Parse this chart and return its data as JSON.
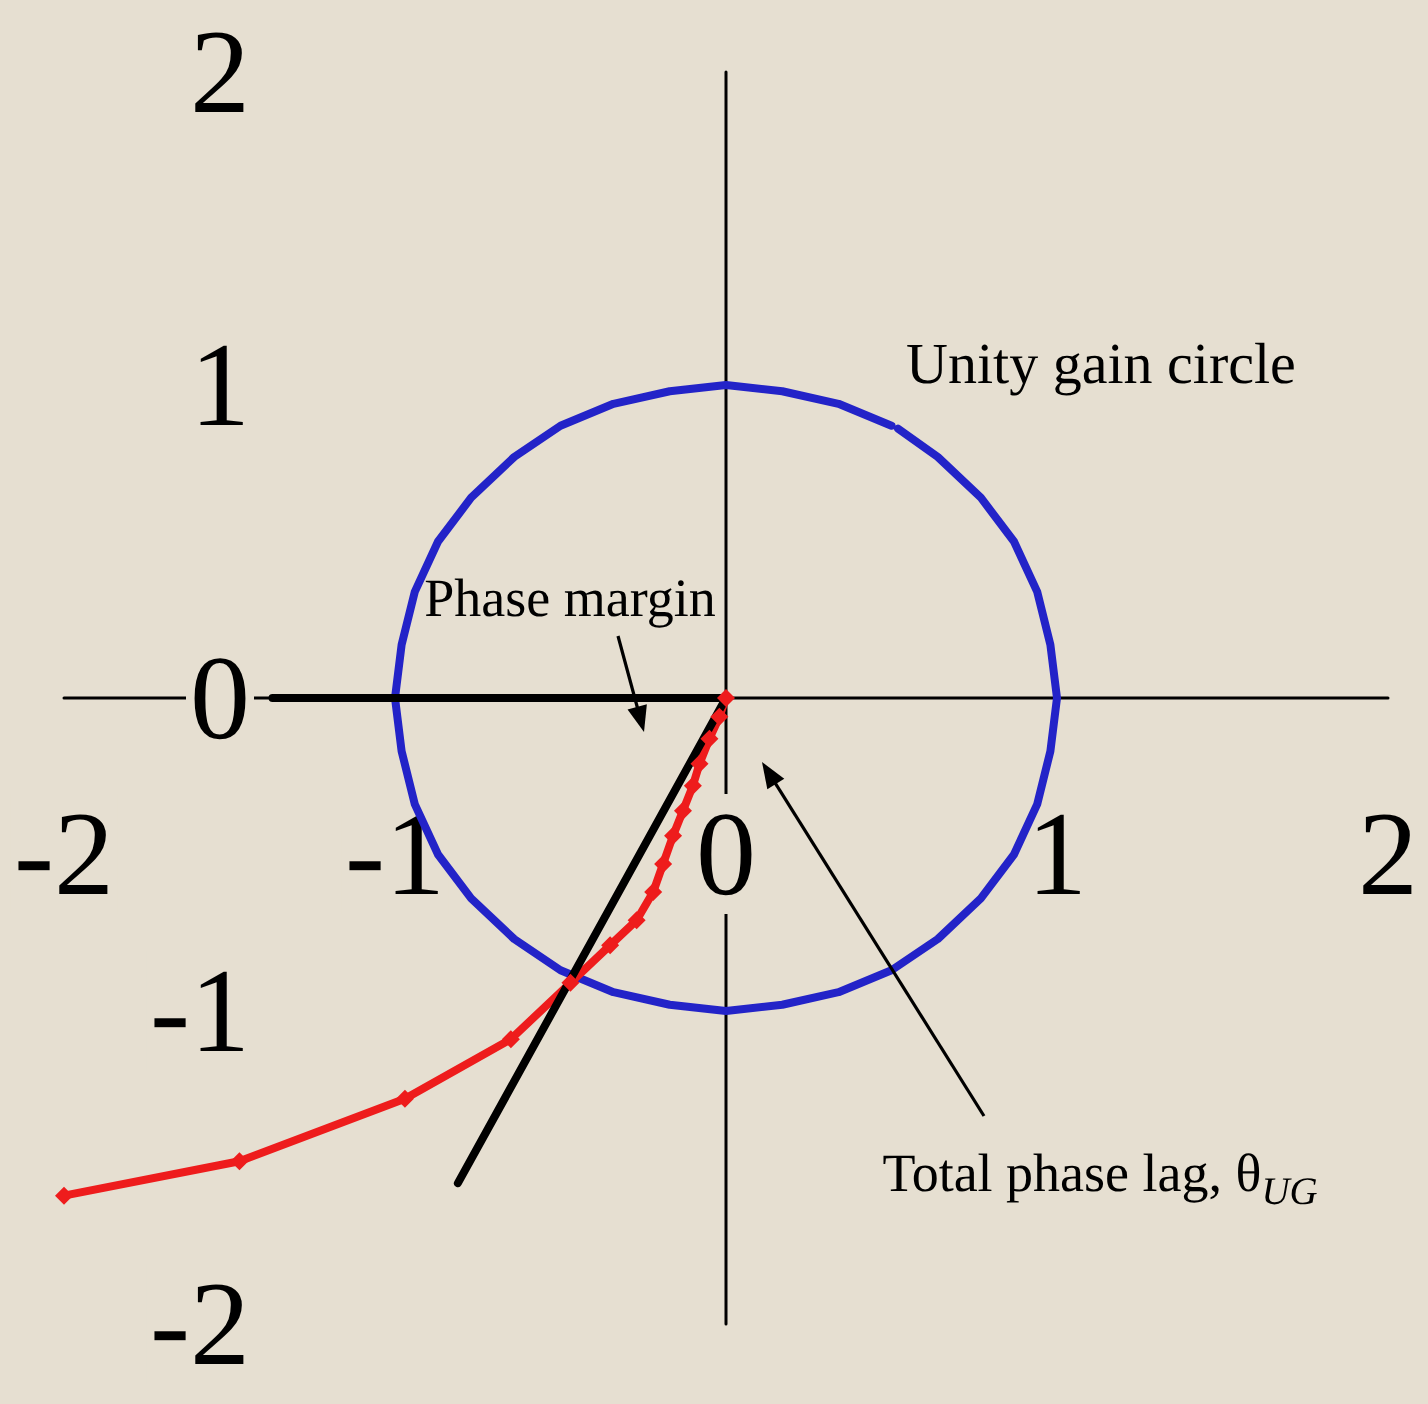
{
  "chart_data": {
    "type": "line",
    "xlim": [
      -2,
      2
    ],
    "xticks": [
      -2,
      -1,
      0,
      1,
      2
    ],
    "ylim": [
      -2,
      2
    ],
    "yticks": [
      -2,
      -1,
      0,
      1,
      2
    ],
    "series": [
      {
        "name": "Unity gain circle",
        "color": "#2323c8",
        "x": [
          0.5,
          0.34,
          0.17,
          0,
          -0.17,
          -0.34,
          -0.5,
          -0.64,
          -0.77,
          -0.87,
          -0.94,
          -0.98,
          -1,
          -0.98,
          -0.94,
          -0.87,
          -0.77,
          -0.64,
          -0.5,
          -0.34,
          -0.17,
          0,
          0.17,
          0.34,
          0.5,
          0.64,
          0.77,
          0.87,
          0.94,
          0.98,
          1,
          0.98,
          0.94,
          0.87,
          0.77,
          0.64,
          0.52
        ],
        "values": [
          0.87,
          0.94,
          0.98,
          1,
          0.98,
          0.94,
          0.87,
          0.77,
          0.64,
          0.5,
          0.34,
          0.17,
          0,
          -0.17,
          -0.34,
          -0.5,
          -0.64,
          -0.77,
          -0.87,
          -0.94,
          -0.98,
          -1,
          -0.98,
          -0.94,
          -0.87,
          -0.77,
          -0.64,
          -0.5,
          -0.34,
          -0.17,
          0,
          0.17,
          0.34,
          0.5,
          0.64,
          0.77,
          0.86
        ]
      },
      {
        "color": "#ee1c1c",
        "marker": "diamond",
        "x": [
          0,
          -0.02,
          -0.05,
          -0.08,
          -0.1,
          -0.13,
          -0.16,
          -0.19,
          -0.22,
          -0.27,
          -0.35,
          -0.47,
          -0.65,
          -0.97,
          -1.47,
          -2.0
        ],
        "values": [
          0,
          -0.06,
          -0.13,
          -0.21,
          -0.28,
          -0.36,
          -0.44,
          -0.53,
          -0.62,
          -0.71,
          -0.79,
          -0.91,
          -1.09,
          -1.28,
          -1.48,
          -1.59
        ]
      },
      {
        "color": "#000000",
        "x": [
          -1.37,
          0,
          -0.81
        ],
        "values": [
          0,
          0,
          -1.55
        ]
      }
    ],
    "annotations": [
      "Phase margin",
      "Total phase lag, θ$_{UG}$"
    ]
  }
}
